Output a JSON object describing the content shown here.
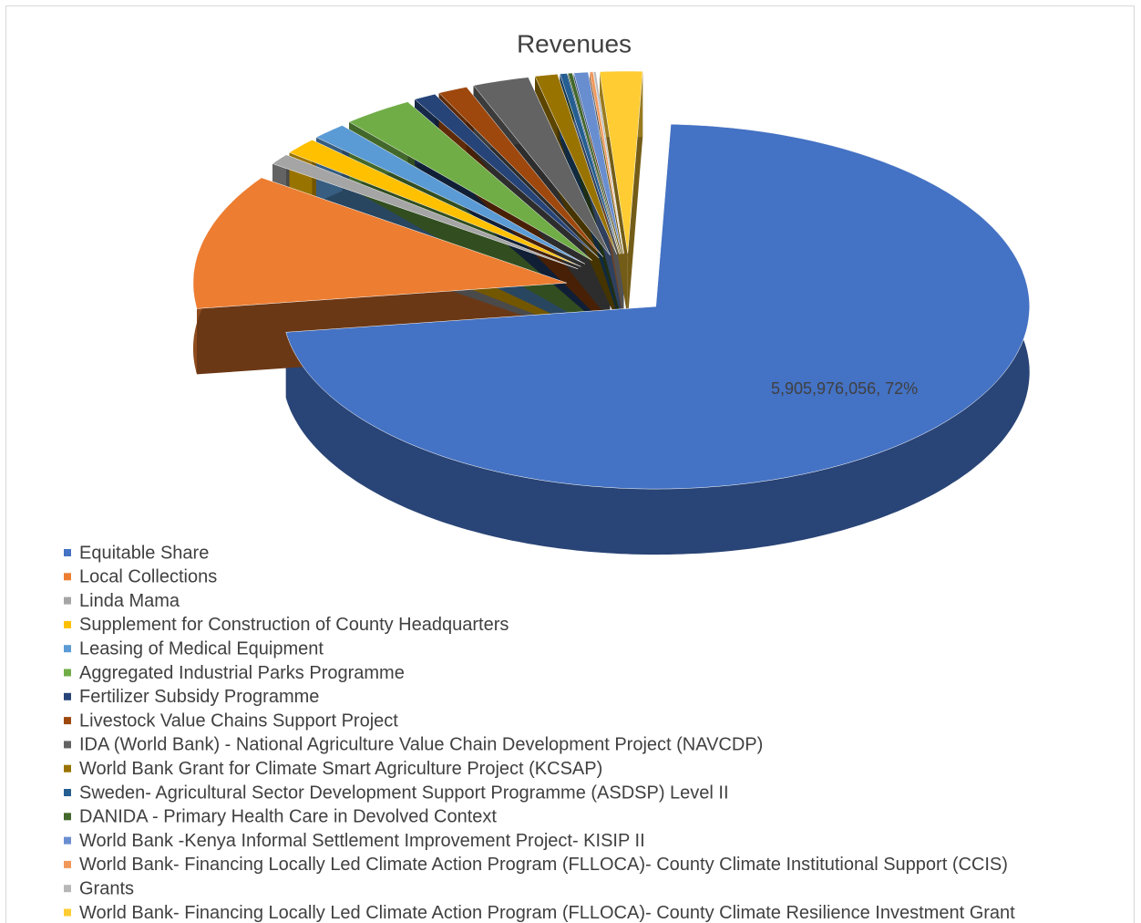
{
  "chart_data": {
    "type": "pie3d",
    "title": "Revenues",
    "categories": [
      "Equitable Share",
      "Local Collections",
      "Linda Mama",
      "Supplement for Construction of County Headquarters",
      "Leasing of Medical Equipment",
      "Aggregated Industrial Parks Programme",
      "Fertilizer Subsidy Programme",
      "Livestock Value Chains Support Project",
      "IDA (World Bank) - National Agriculture Value Chain Development Project (NAVCDP)",
      "World Bank Grant for Climate Smart Agriculture Project (KCSAP)",
      "Sweden- Agricultural Sector Development Support Programme (ASDSP) Level II",
      "DANIDA - Primary Health Care in Devolved Context",
      "World Bank -Kenya Informal Settlement Improvement Project- KISIP II",
      "World Bank- Financing Locally Led Climate Action Program (FLLOCA)- County Climate Institutional Support (CCIS)",
      "Grants",
      "World Bank- Financing Locally Led Climate Action Program (FLLOCA)- County Climate Resilience Investment Grant"
    ],
    "values": [
      5905976056,
      985000000,
      80000000,
      120000000,
      124000000,
      250000000,
      80000000,
      105000000,
      200000000,
      80000000,
      25000000,
      15000000,
      50000000,
      12000000,
      8000000,
      150000000
    ],
    "value_labels": [
      "5,905,976,056, 72%",
      null,
      null,
      null,
      null,
      null,
      null,
      null,
      null,
      null,
      null,
      null,
      null,
      null,
      null,
      null
    ],
    "colors": [
      "#4472c4",
      "#ed7d31",
      "#a5a5a5",
      "#ffc000",
      "#5b9bd5",
      "#70ad47",
      "#264478",
      "#9e480e",
      "#636363",
      "#997300",
      "#255e91",
      "#43682b",
      "#698ed0",
      "#f1975a",
      "#b7b7b7",
      "#ffcd33"
    ],
    "legend": "bottom"
  }
}
